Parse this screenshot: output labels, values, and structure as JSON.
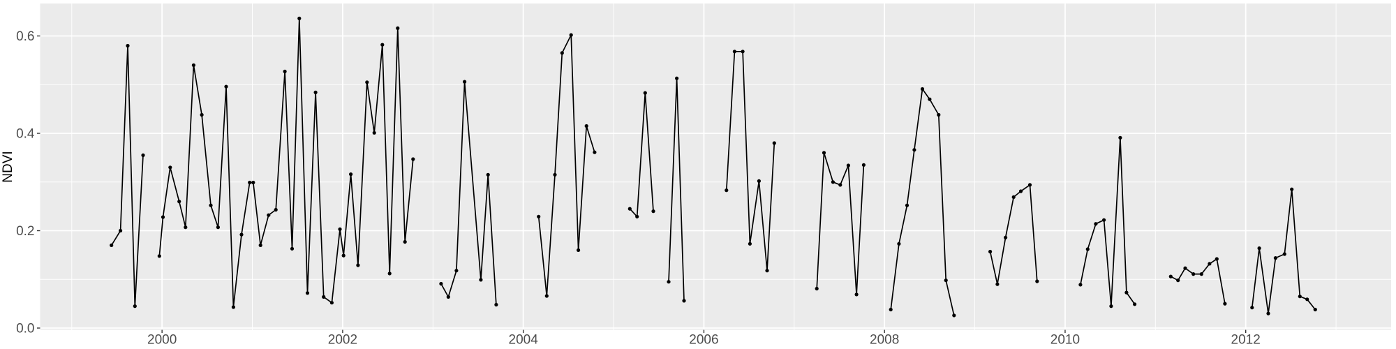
{
  "chart_data": {
    "type": "line",
    "title": "",
    "xlabel": "",
    "ylabel": "NDVI",
    "legend": "none",
    "grid": true,
    "xlim": [
      1998.65,
      2013.61
    ],
    "ylim": [
      -0.0036,
      0.6667
    ],
    "x_ticks": [
      2000,
      2002,
      2004,
      2006,
      2008,
      2010,
      2012
    ],
    "x_tick_labels": [
      "2000",
      "2002",
      "2004",
      "2006",
      "2008",
      "2010",
      "2012"
    ],
    "x_minor_gridlines": [
      1999,
      2001,
      2003,
      2005,
      2007,
      2009,
      2011,
      2013
    ],
    "y_ticks": [
      0.0,
      0.2,
      0.4,
      0.6
    ],
    "y_tick_labels": [
      "0.0",
      "0.2",
      "0.4",
      "0.6"
    ],
    "y_minor_gridlines": [
      0.1,
      0.3,
      0.5
    ],
    "style": {
      "panel_bg": "#EBEBEB",
      "grid_color": "#FFFFFF",
      "line_color": "#000000",
      "point_color": "#000000",
      "tick_label_color": "#4D4D4D",
      "tick_mark_color": "#333333",
      "axis_title_color": "#000000",
      "outer_bg": "#FFFFFF"
    },
    "series": [
      {
        "name": "NDVI",
        "segments": [
          [
            [
              1999.44,
              0.17
            ],
            [
              1999.54,
              0.2
            ],
            [
              1999.62,
              0.58
            ],
            [
              1999.7,
              0.045
            ],
            [
              1999.79,
              0.355
            ]
          ],
          [
            [
              1999.97,
              0.148
            ],
            [
              2000.01,
              0.228
            ],
            [
              2000.09,
              0.33
            ],
            [
              2000.19,
              0.26
            ],
            [
              2000.26,
              0.207
            ],
            [
              2000.35,
              0.54
            ],
            [
              2000.44,
              0.438
            ],
            [
              2000.54,
              0.252
            ],
            [
              2000.62,
              0.207
            ],
            [
              2000.71,
              0.496
            ],
            [
              2000.79,
              0.043
            ],
            [
              2000.88,
              0.192
            ],
            [
              2000.97,
              0.299
            ],
            [
              2001.01,
              0.299
            ],
            [
              2001.09,
              0.17
            ],
            [
              2001.18,
              0.232
            ],
            [
              2001.26,
              0.243
            ],
            [
              2001.36,
              0.527
            ],
            [
              2001.44,
              0.163
            ],
            [
              2001.52,
              0.636
            ],
            [
              2001.61,
              0.072
            ],
            [
              2001.7,
              0.484
            ],
            [
              2001.79,
              0.064
            ],
            [
              2001.88,
              0.052
            ],
            [
              2001.97,
              0.203
            ],
            [
              2002.01,
              0.149
            ],
            [
              2002.09,
              0.316
            ],
            [
              2002.17,
              0.129
            ],
            [
              2002.27,
              0.505
            ],
            [
              2002.35,
              0.401
            ],
            [
              2002.44,
              0.582
            ],
            [
              2002.52,
              0.112
            ],
            [
              2002.61,
              0.616
            ],
            [
              2002.69,
              0.177
            ],
            [
              2002.78,
              0.347
            ]
          ],
          [
            [
              2003.09,
              0.091
            ],
            [
              2003.17,
              0.064
            ],
            [
              2003.26,
              0.118
            ],
            [
              2003.35,
              0.506
            ],
            [
              2003.53,
              0.099
            ],
            [
              2003.61,
              0.315
            ],
            [
              2003.7,
              0.048
            ]
          ],
          [
            [
              2004.17,
              0.229
            ],
            [
              2004.26,
              0.066
            ],
            [
              2004.35,
              0.315
            ],
            [
              2004.43,
              0.565
            ],
            [
              2004.53,
              0.602
            ],
            [
              2004.61,
              0.16
            ],
            [
              2004.7,
              0.415
            ],
            [
              2004.79,
              0.361
            ]
          ],
          [
            [
              2005.18,
              0.245
            ],
            [
              2005.26,
              0.229
            ],
            [
              2005.35,
              0.483
            ],
            [
              2005.44,
              0.24
            ]
          ],
          [
            [
              2005.61,
              0.095
            ],
            [
              2005.7,
              0.513
            ],
            [
              2005.78,
              0.056
            ]
          ],
          [
            [
              2006.25,
              0.283
            ],
            [
              2006.34,
              0.568
            ],
            [
              2006.43,
              0.568
            ],
            [
              2006.51,
              0.173
            ],
            [
              2006.61,
              0.302
            ],
            [
              2006.7,
              0.118
            ],
            [
              2006.78,
              0.38
            ]
          ],
          [
            [
              2007.25,
              0.081
            ],
            [
              2007.33,
              0.36
            ],
            [
              2007.43,
              0.3
            ],
            [
              2007.51,
              0.294
            ],
            [
              2007.6,
              0.334
            ],
            [
              2007.69,
              0.069
            ],
            [
              2007.77,
              0.335
            ]
          ],
          [
            [
              2008.07,
              0.038
            ],
            [
              2008.16,
              0.173
            ],
            [
              2008.25,
              0.252
            ],
            [
              2008.33,
              0.366
            ],
            [
              2008.42,
              0.491
            ],
            [
              2008.5,
              0.47
            ],
            [
              2008.6,
              0.438
            ],
            [
              2008.68,
              0.098
            ],
            [
              2008.77,
              0.026
            ]
          ],
          [
            [
              2009.17,
              0.157
            ],
            [
              2009.25,
              0.09
            ],
            [
              2009.34,
              0.186
            ],
            [
              2009.43,
              0.269
            ],
            [
              2009.51,
              0.281
            ],
            [
              2009.61,
              0.294
            ],
            [
              2009.69,
              0.096
            ]
          ],
          [
            [
              2010.17,
              0.089
            ],
            [
              2010.25,
              0.162
            ],
            [
              2010.34,
              0.214
            ],
            [
              2010.43,
              0.222
            ],
            [
              2010.51,
              0.045
            ],
            [
              2010.61,
              0.391
            ],
            [
              2010.68,
              0.073
            ],
            [
              2010.77,
              0.049
            ]
          ],
          [
            [
              2011.17,
              0.106
            ],
            [
              2011.25,
              0.098
            ],
            [
              2011.33,
              0.123
            ],
            [
              2011.42,
              0.111
            ],
            [
              2011.51,
              0.111
            ],
            [
              2011.6,
              0.132
            ],
            [
              2011.68,
              0.142
            ],
            [
              2011.77,
              0.05
            ]
          ],
          [
            [
              2012.07,
              0.042
            ],
            [
              2012.15,
              0.164
            ],
            [
              2012.25,
              0.03
            ],
            [
              2012.33,
              0.144
            ],
            [
              2012.43,
              0.152
            ],
            [
              2012.51,
              0.285
            ],
            [
              2012.6,
              0.065
            ],
            [
              2012.68,
              0.059
            ],
            [
              2012.77,
              0.038
            ]
          ]
        ]
      }
    ]
  }
}
